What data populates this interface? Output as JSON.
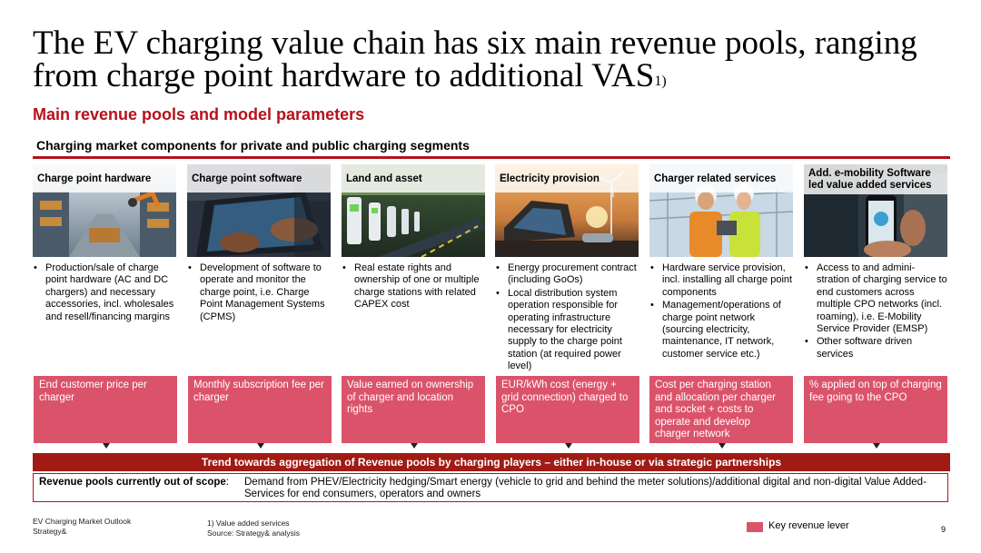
{
  "title": "The EV charging value chain has six main revenue pools, ranging from charge point hardware to additional VAS",
  "title_footnote_mark": "1)",
  "subtitle": "Main revenue pools and model parameters",
  "section_label": "Charging market components for private and public charging segments",
  "columns": [
    {
      "header": "Charge point hardware",
      "image_icon": "warehouse-robot-image",
      "bullets": [
        "Production/sale of charge point hardware (AC and DC chargers) and necessary accessories, incl. wholesales and resell/financing margins"
      ],
      "lever": "End customer price per charger"
    },
    {
      "header": "Charge point software",
      "image_icon": "laptop-typing-image",
      "bullets": [
        "Development of software to operate and monitor the charge point, i.e. Charge Point Management Systems (CPMS)"
      ],
      "lever": "Monthly subscription fee per charger"
    },
    {
      "header": "Land and asset",
      "image_icon": "charging-stations-image",
      "bullets": [
        "Real estate rights and ownership of one or multiple charge stations with related CAPEX cost"
      ],
      "lever": "Value earned on ownership of charger and location rights"
    },
    {
      "header": "Electricity provision",
      "image_icon": "wind-turbine-image",
      "bullets": [
        "Energy procurement contract (including GoOs)",
        "Local distribution system operation responsible for operating infrastructure necessary for electricity supply to the charge point station (at required power level)"
      ],
      "lever": "EUR/kWh cost (energy + grid connection) charged to CPO"
    },
    {
      "header": "Charger related services",
      "image_icon": "engineers-image",
      "bullets": [
        "Hardware service provision, incl. installing all charge point components",
        "Management/operations of charge point network (sourcing electricity, maintenance, IT network, customer service etc.)"
      ],
      "lever": "Cost per charging station and allocation per charger and socket + costs to operate and develop charger network"
    },
    {
      "header": "Add. e-mobility Software led value added services",
      "image_icon": "smartphone-app-image",
      "bullets": [
        "Access to and admini-stration of charging service to end customers across multiple CPO networks (incl. roaming), i.e. E-Mobility Service Provider (EMSP)",
        "Other software driven services"
      ],
      "lever": "% applied on top of charging fee going to the CPO"
    }
  ],
  "trend_banner": "Trend towards aggregation of Revenue pools by charging players – either in-house or via strategic partnerships",
  "scope": {
    "label": "Revenue pools currently out of scope",
    "text": "Demand from PHEV/Electricity hedging/Smart energy (vehicle to grid and behind the meter solutions)/additional digital and non-digital Value Added-Services for end consumers, operators and owners"
  },
  "footer": {
    "doc_name": "EV Charging Market Outlook",
    "company": "Strategy&",
    "footnote": "1) Value added services",
    "source": "Source: Strategy& analysis",
    "legend": "Key revenue lever",
    "page": "9"
  },
  "colors": {
    "accent": "#b5121b",
    "lever": "#db536a",
    "banner": "#a11a14"
  }
}
